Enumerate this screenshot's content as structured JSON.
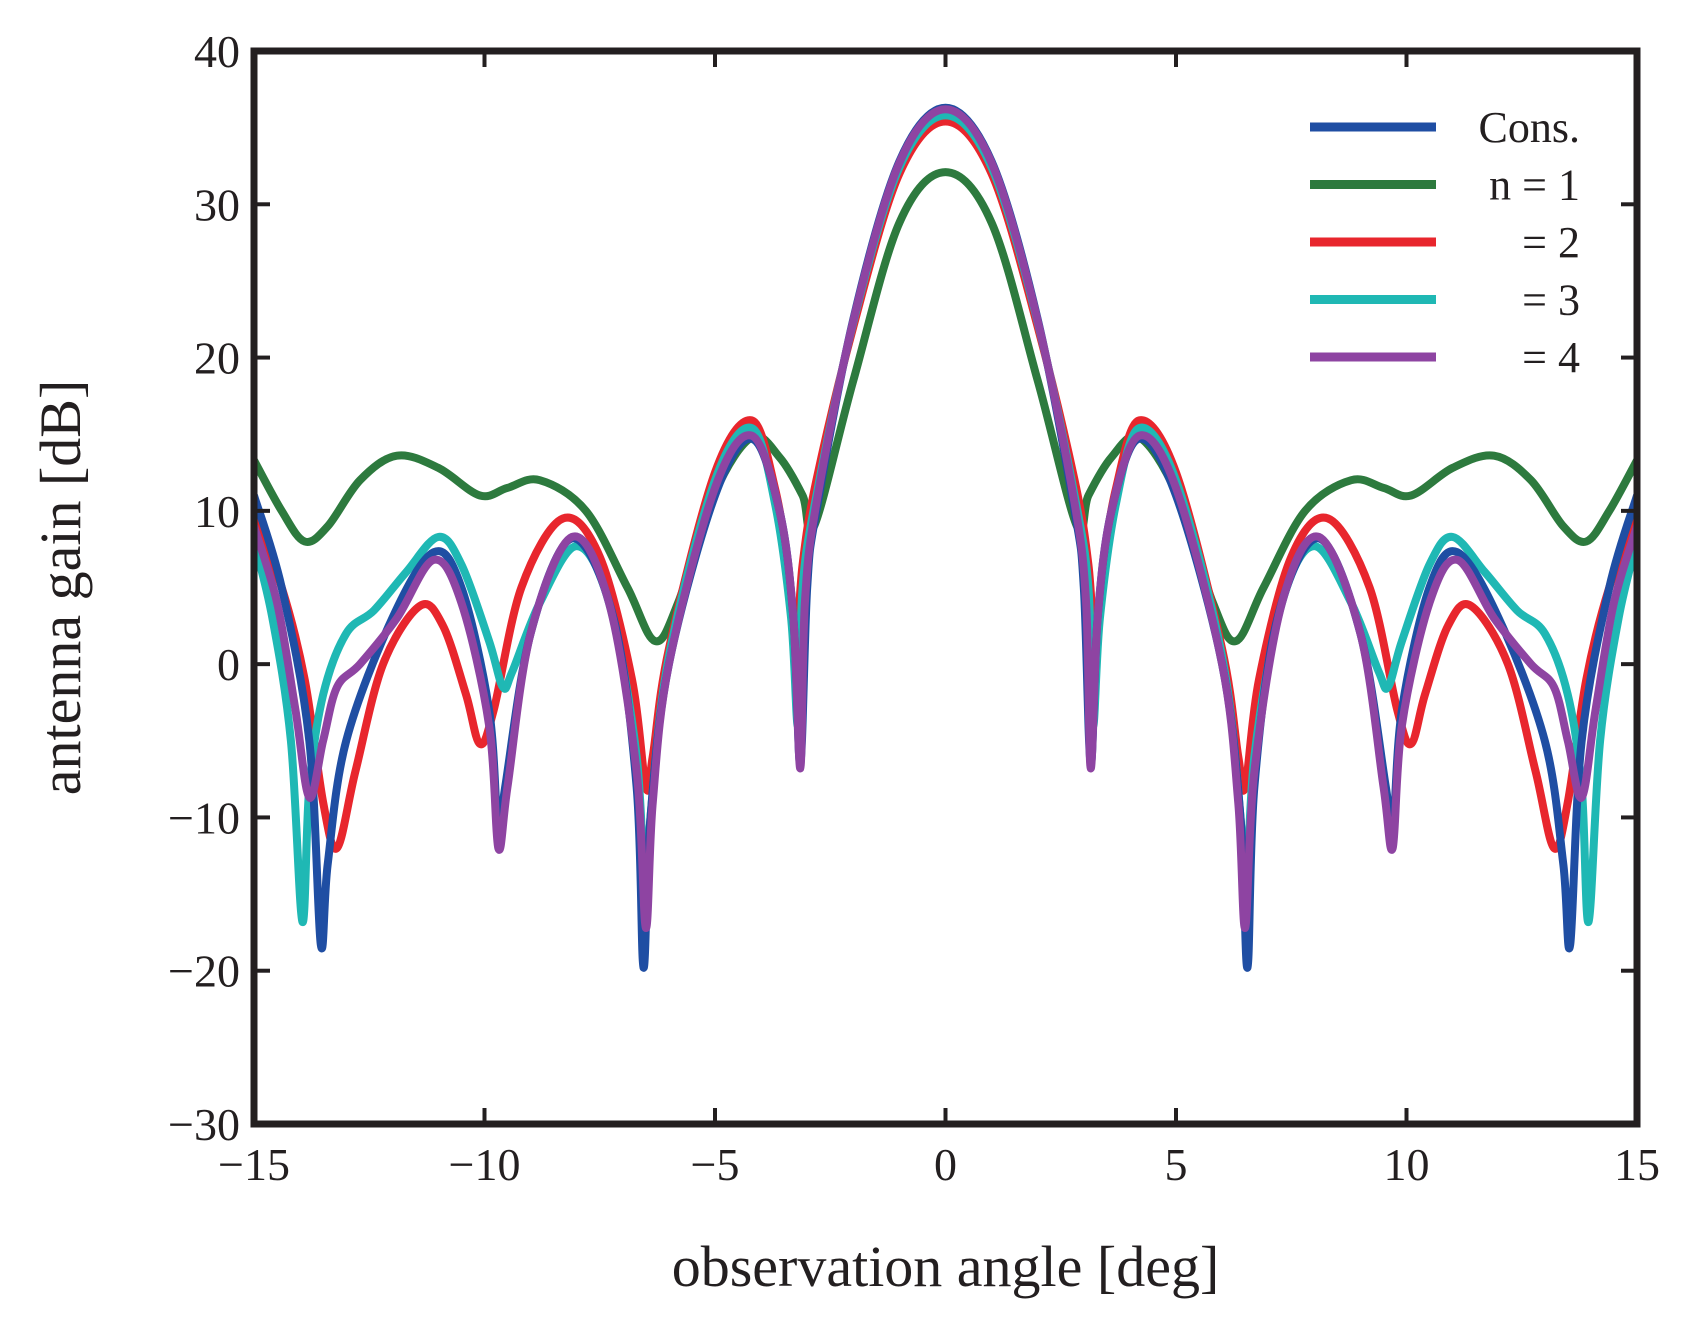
{
  "chart_data": {
    "type": "line",
    "title": "",
    "xlabel": "observation angle [deg]",
    "ylabel": "antenna gain [dB]",
    "xlim": [
      -15,
      15
    ],
    "ylim": [
      -30,
      40
    ],
    "xticks": [
      -15,
      -10,
      -5,
      0,
      5,
      10,
      15
    ],
    "yticks": [
      -30,
      -20,
      -10,
      0,
      10,
      20,
      30,
      40
    ],
    "xtick_labels": [
      "−15",
      "−10",
      "−5",
      "0",
      "5",
      "10",
      "15"
    ],
    "ytick_labels": [
      "−30",
      "−20",
      "−10",
      "0",
      "10",
      "20",
      "30",
      "40"
    ],
    "grid": false,
    "legend_position": "top-right",
    "symmetric_about_zero": true,
    "series": [
      {
        "name": "Cons.",
        "color": "#1f4ea3",
        "points_right_half": [
          [
            0,
            36.3
          ],
          [
            1,
            32.8
          ],
          [
            2,
            22.5
          ],
          [
            2.8,
            10
          ],
          [
            3.0,
            5
          ],
          [
            3.15,
            -6.5
          ],
          [
            3.3,
            3
          ],
          [
            3.6,
            10
          ],
          [
            4.2,
            14.7
          ],
          [
            5,
            11
          ],
          [
            6,
            0
          ],
          [
            6.4,
            -10
          ],
          [
            6.55,
            -19.8
          ],
          [
            6.7,
            -8
          ],
          [
            7.2,
            3
          ],
          [
            8.1,
            8.2
          ],
          [
            9.0,
            2
          ],
          [
            9.55,
            -8
          ],
          [
            9.7,
            -11
          ],
          [
            9.9,
            -3
          ],
          [
            10.5,
            5
          ],
          [
            11.1,
            7.3
          ],
          [
            12.0,
            3
          ],
          [
            13.0,
            -5
          ],
          [
            13.4,
            -13
          ],
          [
            13.55,
            -18.3
          ],
          [
            13.8,
            -5
          ],
          [
            14.4,
            5
          ],
          [
            15,
            11
          ]
        ]
      },
      {
        "name": "n = 1",
        "color": "#2d7a3e",
        "points_right_half": [
          [
            0,
            32.1
          ],
          [
            1,
            28.8
          ],
          [
            2,
            18.5
          ],
          [
            2.85,
            9
          ],
          [
            3.1,
            11
          ],
          [
            3.6,
            13.5
          ],
          [
            4.2,
            14.8
          ],
          [
            5,
            11.2
          ],
          [
            5.8,
            4
          ],
          [
            6.3,
            1.5
          ],
          [
            6.9,
            5
          ],
          [
            7.8,
            10
          ],
          [
            8.8,
            12
          ],
          [
            9.5,
            11.5
          ],
          [
            10.1,
            11
          ],
          [
            11,
            12.8
          ],
          [
            11.9,
            13.6
          ],
          [
            12.7,
            12
          ],
          [
            13.4,
            9
          ],
          [
            13.9,
            8
          ],
          [
            14.4,
            10
          ],
          [
            15,
            13.3
          ]
        ]
      },
      {
        "name": "= 2",
        "color": "#e8262d",
        "points_right_half": [
          [
            0,
            35.4
          ],
          [
            1,
            32
          ],
          [
            2,
            22
          ],
          [
            2.8,
            12
          ],
          [
            3.1,
            6.5
          ],
          [
            3.25,
            1
          ],
          [
            3.4,
            6
          ],
          [
            3.7,
            11.5
          ],
          [
            4.2,
            15.9
          ],
          [
            5,
            12.5
          ],
          [
            6,
            1
          ],
          [
            6.35,
            -6
          ],
          [
            6.5,
            -8
          ],
          [
            6.8,
            -1
          ],
          [
            7.5,
            7
          ],
          [
            8.3,
            9.5
          ],
          [
            9.2,
            5
          ],
          [
            9.8,
            -3
          ],
          [
            10.1,
            -5.2
          ],
          [
            10.4,
            -2
          ],
          [
            10.9,
            2.5
          ],
          [
            11.4,
            3.8
          ],
          [
            12.2,
            0
          ],
          [
            12.8,
            -7
          ],
          [
            13.2,
            -12
          ],
          [
            13.5,
            -9
          ],
          [
            13.9,
            -1
          ],
          [
            14.4,
            5
          ],
          [
            15,
            9.5
          ]
        ]
      },
      {
        "name": "= 3",
        "color": "#1fb8b4",
        "points_right_half": [
          [
            0,
            35.8
          ],
          [
            1,
            32.4
          ],
          [
            2,
            22.3
          ],
          [
            2.8,
            11
          ],
          [
            3.1,
            5
          ],
          [
            3.2,
            -4
          ],
          [
            3.35,
            3
          ],
          [
            3.7,
            10.5
          ],
          [
            4.2,
            15.4
          ],
          [
            5,
            12
          ],
          [
            6,
            0.5
          ],
          [
            6.4,
            -10
          ],
          [
            6.5,
            -16.5
          ],
          [
            6.7,
            -6
          ],
          [
            7.3,
            4
          ],
          [
            8.0,
            7.7
          ],
          [
            8.8,
            4
          ],
          [
            9.4,
            -0.5
          ],
          [
            9.6,
            -1.5
          ],
          [
            9.9,
            1.5
          ],
          [
            10.5,
            6.5
          ],
          [
            11.0,
            8.3
          ],
          [
            11.7,
            6
          ],
          [
            12.4,
            3.5
          ],
          [
            13.0,
            2
          ],
          [
            13.5,
            -2
          ],
          [
            13.8,
            -8
          ],
          [
            13.95,
            -16.8
          ],
          [
            14.2,
            -5
          ],
          [
            14.6,
            3
          ],
          [
            15,
            8
          ]
        ]
      },
      {
        "name": "= 4",
        "color": "#8e44a2",
        "points_right_half": [
          [
            0,
            36.2
          ],
          [
            1,
            32.7
          ],
          [
            2,
            22.4
          ],
          [
            2.8,
            10.5
          ],
          [
            3.05,
            4
          ],
          [
            3.15,
            -6.8
          ],
          [
            3.3,
            3
          ],
          [
            3.6,
            10
          ],
          [
            4.2,
            14.9
          ],
          [
            5,
            11.5
          ],
          [
            6,
            0
          ],
          [
            6.35,
            -9
          ],
          [
            6.5,
            -17.2
          ],
          [
            6.7,
            -7
          ],
          [
            7.3,
            4
          ],
          [
            8.1,
            8.3
          ],
          [
            9.0,
            2
          ],
          [
            9.5,
            -8
          ],
          [
            9.7,
            -12
          ],
          [
            9.9,
            -4
          ],
          [
            10.5,
            4
          ],
          [
            11.1,
            6.8
          ],
          [
            11.9,
            3
          ],
          [
            12.7,
            0
          ],
          [
            13.2,
            -1.5
          ],
          [
            13.5,
            -5
          ],
          [
            13.8,
            -8.7
          ],
          [
            14.1,
            -3
          ],
          [
            14.5,
            4
          ],
          [
            15,
            9
          ]
        ]
      }
    ]
  }
}
